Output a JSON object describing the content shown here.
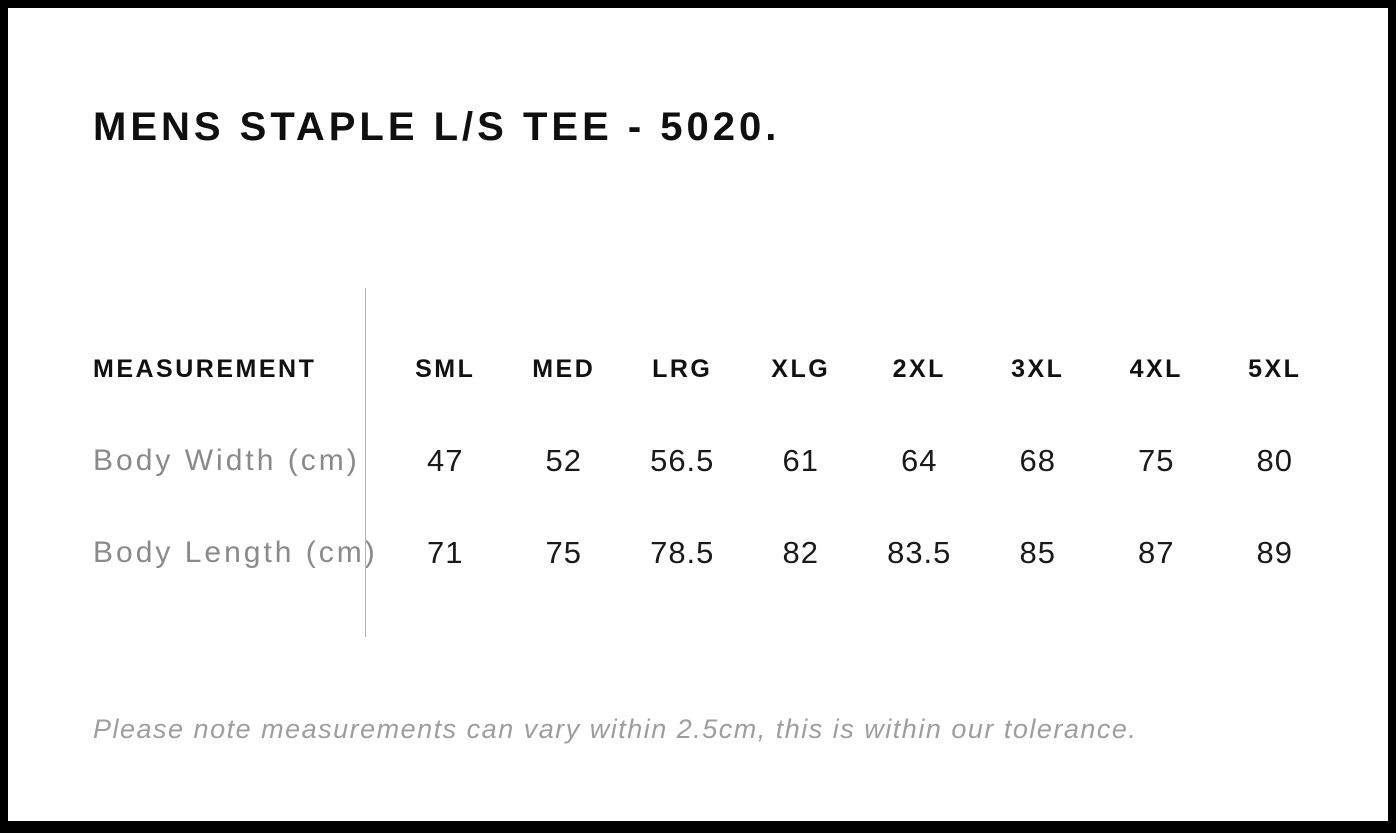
{
  "page": {
    "title": "MENS STAPLE L/S TEE - 5020."
  },
  "size_chart": {
    "measurement_header": "MEASUREMENT",
    "sizes": [
      "SML",
      "MED",
      "LRG",
      "XLG",
      "2XL",
      "3XL",
      "4XL",
      "5XL"
    ],
    "rows": [
      {
        "label": "Body Width (cm)",
        "values": [
          "47",
          "52",
          "56.5",
          "61",
          "64",
          "68",
          "75",
          "80"
        ]
      },
      {
        "label": "Body Length (cm)",
        "values": [
          "71",
          "75",
          "78.5",
          "82",
          "83.5",
          "85",
          "87",
          "89"
        ]
      }
    ]
  },
  "footer": {
    "tolerance_note": "Please note measurements can vary within 2.5cm, this is within our tolerance."
  },
  "chart_data": {
    "type": "table",
    "title": "MENS STAPLE L/S TEE - 5020.",
    "columns": [
      "MEASUREMENT",
      "SML",
      "MED",
      "LRG",
      "XLG",
      "2XL",
      "3XL",
      "4XL",
      "5XL"
    ],
    "rows": [
      [
        "Body Width (cm)",
        47,
        52,
        56.5,
        61,
        64,
        68,
        75,
        80
      ],
      [
        "Body Length (cm)",
        71,
        75,
        78.5,
        82,
        83.5,
        85,
        87,
        89
      ]
    ],
    "note": "Please note measurements can vary within 2.5cm, this is within our tolerance."
  },
  "colors": {
    "background": "#ffffff",
    "frame_border": "#000000",
    "text_primary": "#111111",
    "text_muted": "#8a8a8a",
    "divider": "#b3b3b3",
    "note_text": "#9e9e9e"
  }
}
